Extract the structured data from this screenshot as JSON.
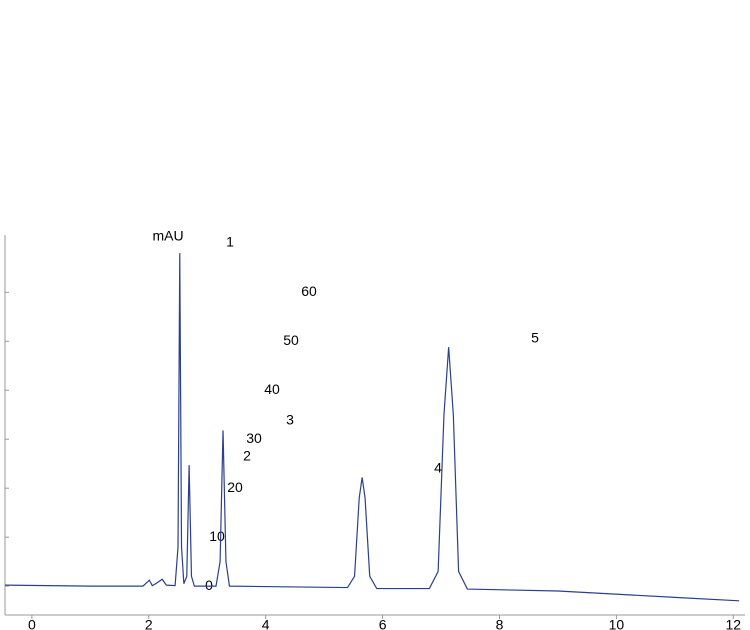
{
  "chart_data": {
    "type": "line",
    "y_label": "mAU",
    "x": [
      -0.46,
      1.0,
      1.9,
      2.01,
      2.06,
      2.12,
      2.23,
      2.3,
      2.45,
      2.5,
      2.53,
      2.56,
      2.6,
      2.65,
      2.69,
      2.73,
      2.78,
      3.15,
      3.22,
      3.27,
      3.32,
      3.38,
      5.4,
      5.52,
      5.6,
      5.65,
      5.7,
      5.78,
      5.9,
      6.8,
      6.95,
      7.05,
      7.13,
      7.21,
      7.3,
      7.45,
      9.0,
      11.0,
      12.1
    ],
    "series": [
      {
        "color": "#2b3f8f",
        "values": [
          0.2,
          0.0,
          0.0,
          1.2,
          0.1,
          0.5,
          1.4,
          0.2,
          0.1,
          8,
          68,
          8,
          0.5,
          2,
          24.7,
          2,
          0,
          0,
          5,
          31.8,
          5,
          0,
          -0.3,
          2,
          18,
          22.2,
          18,
          2,
          -0.5,
          -0.5,
          3,
          35,
          48.8,
          35,
          3,
          -0.6,
          -1.0,
          -2.3,
          -3.0
        ]
      }
    ],
    "annotations": [
      "1",
      "2",
      "3",
      "4",
      "5"
    ],
    "xlim": [
      -0.46,
      12.2
    ],
    "xticks": [
      0,
      2,
      4,
      6,
      8,
      10,
      12
    ],
    "ylim": [
      -5.9,
      71.7
    ],
    "yticks": [
      0,
      10,
      20,
      30,
      40,
      50,
      60
    ],
    "grid": false
  }
}
